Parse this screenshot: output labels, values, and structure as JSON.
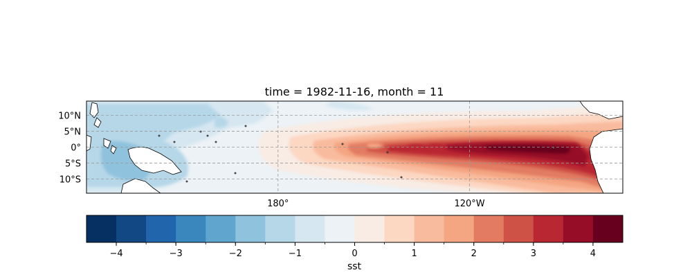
{
  "title": "time = 1982-11-16, month = 11",
  "map": {
    "lat_ticks": [
      {
        "label": "10°N",
        "lat": 10
      },
      {
        "label": "5°N",
        "lat": 5
      },
      {
        "label": "0°",
        "lat": 0
      },
      {
        "label": "5°S",
        "lat": -5
      },
      {
        "label": "10°S",
        "lat": -10
      }
    ],
    "lon_ticks": [
      {
        "label": "180°",
        "lon": 180
      },
      {
        "label": "120°W",
        "lon": 240
      }
    ],
    "lon_range": [
      120,
      288
    ],
    "lat_range": [
      -14.5,
      14.5
    ],
    "gridlines": "dashed"
  },
  "colorbar": {
    "label": "sst",
    "vmin": -4.5,
    "vmax": 4.5,
    "step": 0.5,
    "tick_labels": [
      "−4",
      "−3",
      "−2",
      "−1",
      "0",
      "1",
      "2",
      "3",
      "4"
    ],
    "tick_values": [
      -4,
      -3,
      -2,
      -1,
      0,
      1,
      2,
      3,
      4
    ],
    "colors": [
      "#053061",
      "#124984",
      "#2166ac",
      "#3a87bd",
      "#5fa5cd",
      "#8fc2dd",
      "#b6d7e8",
      "#d6e7f1",
      "#ecf2f6",
      "#f8ece5",
      "#fcd7c2",
      "#f9bb9e",
      "#f4a582",
      "#e27b62",
      "#cf5246",
      "#b92732",
      "#950d27",
      "#67001f"
    ]
  },
  "chart_data": {
    "type": "heatmap",
    "title": "time = 1982-11-16, month = 11",
    "variable": "sst",
    "colorbar_range": [
      -4.5,
      4.5
    ],
    "x_ticks": [
      "180°",
      "120°W"
    ],
    "y_ticks": [
      "10°N",
      "5°N",
      "0°",
      "5°S",
      "10°S"
    ],
    "colorbar_ticks": [
      -4,
      -3,
      -2,
      -1,
      0,
      1,
      2,
      3,
      4
    ]
  }
}
